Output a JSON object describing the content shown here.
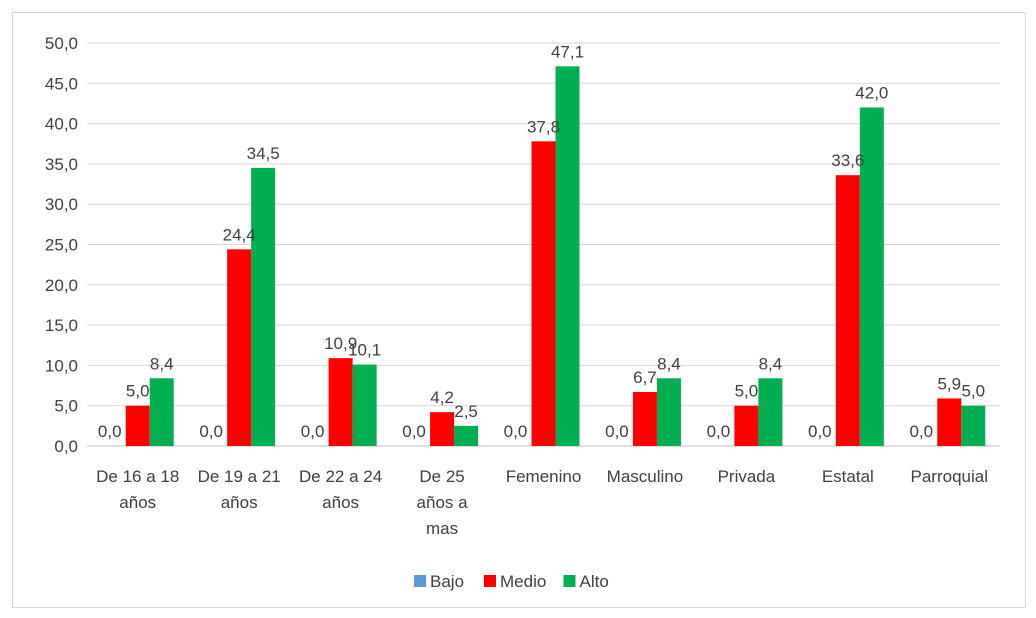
{
  "chart_data": {
    "type": "bar",
    "categories": [
      [
        "De 16 a 18",
        "años"
      ],
      [
        "De 19 a 21",
        "años"
      ],
      [
        "De 22 a 24",
        "años"
      ],
      [
        "De 25",
        "años a",
        "mas"
      ],
      [
        "Femenino"
      ],
      [
        "Masculino"
      ],
      [
        "Privada"
      ],
      [
        "Estatal"
      ],
      [
        "Parroquial"
      ]
    ],
    "series": [
      {
        "name": "Bajo",
        "color": "#5b9bd5",
        "values": [
          0.0,
          0.0,
          0.0,
          0.0,
          0.0,
          0.0,
          0.0,
          0.0,
          0.0
        ],
        "labels": [
          "0,0",
          "0,0",
          "0,0",
          "0,0",
          "0,0",
          "0,0",
          "0,0",
          "0,0",
          "0,0"
        ]
      },
      {
        "name": "Medio",
        "color": "#ff0000",
        "values": [
          5.0,
          24.4,
          10.9,
          4.2,
          37.8,
          6.7,
          5.0,
          33.6,
          5.9
        ],
        "labels": [
          "5,0",
          "24,4",
          "10,9",
          "4,2",
          "37,8",
          "6,7",
          "5,0",
          "33,6",
          "5,9"
        ]
      },
      {
        "name": "Alto",
        "color": "#00b050",
        "values": [
          8.4,
          34.5,
          10.1,
          2.5,
          47.1,
          8.4,
          8.4,
          42.0,
          5.0
        ],
        "labels": [
          "8,4",
          "34,5",
          "10,1",
          "2,5",
          "47,1",
          "8,4",
          "8,4",
          "42,0",
          "5,0"
        ]
      }
    ],
    "ylim": [
      0,
      50
    ],
    "yticks": [
      0,
      5,
      10,
      15,
      20,
      25,
      30,
      35,
      40,
      45,
      50
    ],
    "ytick_labels": [
      "0,0",
      "5,0",
      "10,0",
      "15,0",
      "20,0",
      "25,0",
      "30,0",
      "35,0",
      "40,0",
      "45,0",
      "50,0"
    ],
    "grid": true,
    "legend": "bottom",
    "title": "",
    "xlabel": "",
    "ylabel": ""
  }
}
